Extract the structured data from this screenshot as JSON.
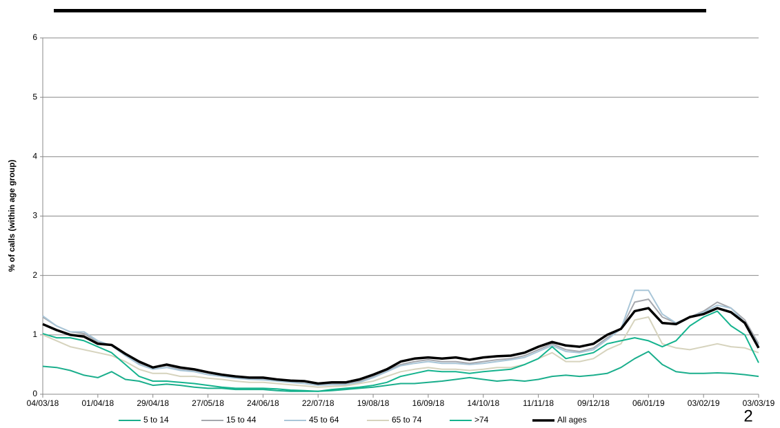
{
  "chart_data": {
    "type": "line",
    "y_axis_label": "% of calls (within age group)",
    "page_number": "2",
    "grid": true,
    "x": [
      "04/03/18",
      "11/03/18",
      "18/03/18",
      "25/03/18",
      "01/04/18",
      "08/04/18",
      "15/04/18",
      "22/04/18",
      "29/04/18",
      "06/05/18",
      "13/05/18",
      "20/05/18",
      "27/05/18",
      "03/06/18",
      "10/06/18",
      "17/06/18",
      "24/06/18",
      "01/07/18",
      "08/07/18",
      "15/07/18",
      "22/07/18",
      "29/07/18",
      "05/08/18",
      "12/08/18",
      "19/08/18",
      "26/08/18",
      "02/09/18",
      "09/09/18",
      "16/09/18",
      "23/09/18",
      "30/09/18",
      "07/10/18",
      "14/10/18",
      "21/10/18",
      "28/10/18",
      "04/11/18",
      "11/11/18",
      "18/11/18",
      "25/11/18",
      "02/12/18",
      "09/12/18",
      "16/12/18",
      "23/12/18",
      "30/12/18",
      "06/01/19",
      "13/01/19",
      "20/01/19",
      "27/01/19",
      "03/02/19",
      "10/02/19",
      "17/02/19",
      "24/02/19",
      "03/03/19"
    ],
    "xlim": [
      "04/03/18",
      "03/03/19"
    ],
    "xticks": [
      "04/03/18",
      "01/04/18",
      "29/04/18",
      "27/05/18",
      "24/06/18",
      "22/07/18",
      "19/08/18",
      "16/09/18",
      "14/10/18",
      "11/11/18",
      "09/12/18",
      "06/01/19",
      "03/02/19",
      "03/03/19"
    ],
    "ylim": [
      0,
      6
    ],
    "yticks": [
      0,
      1,
      2,
      3,
      4,
      5,
      6
    ],
    "series": [
      {
        "name": "5 to 14",
        "color": "#1aae8c",
        "width": 2,
        "values": [
          0.47,
          0.45,
          0.4,
          0.32,
          0.28,
          0.38,
          0.25,
          0.22,
          0.15,
          0.17,
          0.15,
          0.12,
          0.1,
          0.1,
          0.08,
          0.08,
          0.08,
          0.06,
          0.05,
          0.05,
          0.05,
          0.06,
          0.08,
          0.1,
          0.12,
          0.15,
          0.18,
          0.18,
          0.2,
          0.22,
          0.25,
          0.28,
          0.25,
          0.22,
          0.24,
          0.22,
          0.25,
          0.3,
          0.32,
          0.3,
          0.32,
          0.35,
          0.45,
          0.6,
          0.72,
          0.5,
          0.38,
          0.35,
          0.35,
          0.36,
          0.35,
          0.33,
          0.3
        ]
      },
      {
        "name": "15 to 44",
        "color": "#a5a7ad",
        "width": 2,
        "values": [
          1.3,
          1.15,
          1.05,
          1.02,
          0.88,
          0.82,
          0.65,
          0.52,
          0.45,
          0.48,
          0.42,
          0.4,
          0.36,
          0.32,
          0.28,
          0.27,
          0.26,
          0.24,
          0.22,
          0.21,
          0.17,
          0.18,
          0.18,
          0.22,
          0.3,
          0.4,
          0.5,
          0.55,
          0.58,
          0.55,
          0.55,
          0.52,
          0.55,
          0.58,
          0.6,
          0.65,
          0.75,
          0.85,
          0.75,
          0.72,
          0.78,
          0.95,
          1.1,
          1.55,
          1.6,
          1.3,
          1.2,
          1.3,
          1.4,
          1.55,
          1.45,
          1.25,
          0.85
        ]
      },
      {
        "name": "45 to 64",
        "color": "#a9c6d8",
        "width": 2,
        "values": [
          1.32,
          1.15,
          1.05,
          1.05,
          0.9,
          0.82,
          0.65,
          0.5,
          0.42,
          0.45,
          0.4,
          0.38,
          0.33,
          0.3,
          0.27,
          0.25,
          0.24,
          0.22,
          0.2,
          0.18,
          0.15,
          0.16,
          0.16,
          0.2,
          0.28,
          0.38,
          0.48,
          0.52,
          0.55,
          0.52,
          0.52,
          0.5,
          0.52,
          0.55,
          0.58,
          0.62,
          0.72,
          0.82,
          0.72,
          0.7,
          0.75,
          0.92,
          1.1,
          1.75,
          1.75,
          1.35,
          1.2,
          1.3,
          1.38,
          1.5,
          1.45,
          1.2,
          0.82
        ]
      },
      {
        "name": "65 to 74",
        "color": "#d6d3bd",
        "width": 2,
        "values": [
          1.0,
          0.9,
          0.8,
          0.75,
          0.7,
          0.65,
          0.55,
          0.42,
          0.35,
          0.35,
          0.3,
          0.3,
          0.27,
          0.25,
          0.22,
          0.2,
          0.2,
          0.18,
          0.16,
          0.14,
          0.12,
          0.13,
          0.14,
          0.18,
          0.22,
          0.3,
          0.38,
          0.42,
          0.45,
          0.42,
          0.42,
          0.4,
          0.42,
          0.45,
          0.45,
          0.5,
          0.6,
          0.7,
          0.55,
          0.55,
          0.6,
          0.75,
          0.85,
          1.25,
          1.3,
          0.85,
          0.78,
          0.75,
          0.8,
          0.85,
          0.8,
          0.78,
          0.7
        ]
      },
      {
        "name": ">74",
        "color": "#14b38e",
        "width": 2,
        "values": [
          1.02,
          0.95,
          0.95,
          0.9,
          0.8,
          0.7,
          0.5,
          0.3,
          0.22,
          0.22,
          0.2,
          0.18,
          0.15,
          0.12,
          0.1,
          0.1,
          0.1,
          0.09,
          0.07,
          0.06,
          0.05,
          0.08,
          0.1,
          0.12,
          0.15,
          0.2,
          0.3,
          0.35,
          0.4,
          0.38,
          0.38,
          0.35,
          0.38,
          0.4,
          0.42,
          0.5,
          0.6,
          0.8,
          0.6,
          0.65,
          0.7,
          0.85,
          0.9,
          0.95,
          0.9,
          0.8,
          0.9,
          1.15,
          1.3,
          1.4,
          1.15,
          1.0,
          0.53
        ]
      },
      {
        "name": "All ages",
        "color": "#000000",
        "width": 3.5,
        "values": [
          1.18,
          1.08,
          1.0,
          0.97,
          0.85,
          0.83,
          0.68,
          0.55,
          0.45,
          0.5,
          0.45,
          0.42,
          0.37,
          0.33,
          0.3,
          0.28,
          0.28,
          0.25,
          0.23,
          0.22,
          0.18,
          0.2,
          0.2,
          0.25,
          0.33,
          0.42,
          0.55,
          0.6,
          0.62,
          0.6,
          0.62,
          0.58,
          0.62,
          0.64,
          0.65,
          0.7,
          0.8,
          0.88,
          0.82,
          0.8,
          0.85,
          1.0,
          1.1,
          1.4,
          1.45,
          1.2,
          1.18,
          1.3,
          1.35,
          1.45,
          1.38,
          1.2,
          0.78
        ]
      }
    ]
  }
}
